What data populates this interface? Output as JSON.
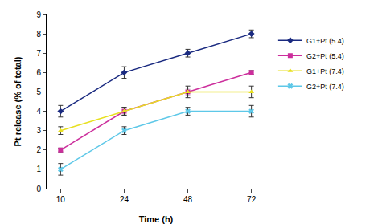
{
  "chart_data": {
    "type": "line",
    "x_label": "Time (h)",
    "y_label": "Pt release (% of total)",
    "categories": [
      "10",
      "24",
      "48",
      "72"
    ],
    "series": [
      {
        "name": "G1+Pt (5.4)",
        "color": "#1a2a80",
        "marker": "diamond",
        "values": [
          4,
          6,
          7,
          8
        ],
        "error": [
          0.3,
          0.3,
          0.2,
          0.2
        ]
      },
      {
        "name": "G2+Pt (5.4)",
        "color": "#cc2e9c",
        "marker": "square",
        "values": [
          2,
          4,
          5,
          6
        ],
        "error": [
          0.1,
          0.2,
          0.2,
          0.1
        ]
      },
      {
        "name": "G1+Pt (7.4)",
        "color": "#e8e020",
        "marker": "triangle",
        "values": [
          3,
          4,
          5,
          5
        ],
        "error": [
          0.2,
          0.2,
          0.3,
          0.3
        ]
      },
      {
        "name": "G2+Pt (7.4)",
        "color": "#5ec8e8",
        "marker": "x",
        "values": [
          1,
          3,
          4,
          4
        ],
        "error": [
          0.3,
          0.2,
          0.2,
          0.3
        ]
      }
    ],
    "ylim": [
      0,
      9
    ],
    "yticks": [
      0,
      1,
      2,
      3,
      4,
      5,
      6,
      7,
      8,
      9
    ],
    "grid": false,
    "legend": "right"
  }
}
